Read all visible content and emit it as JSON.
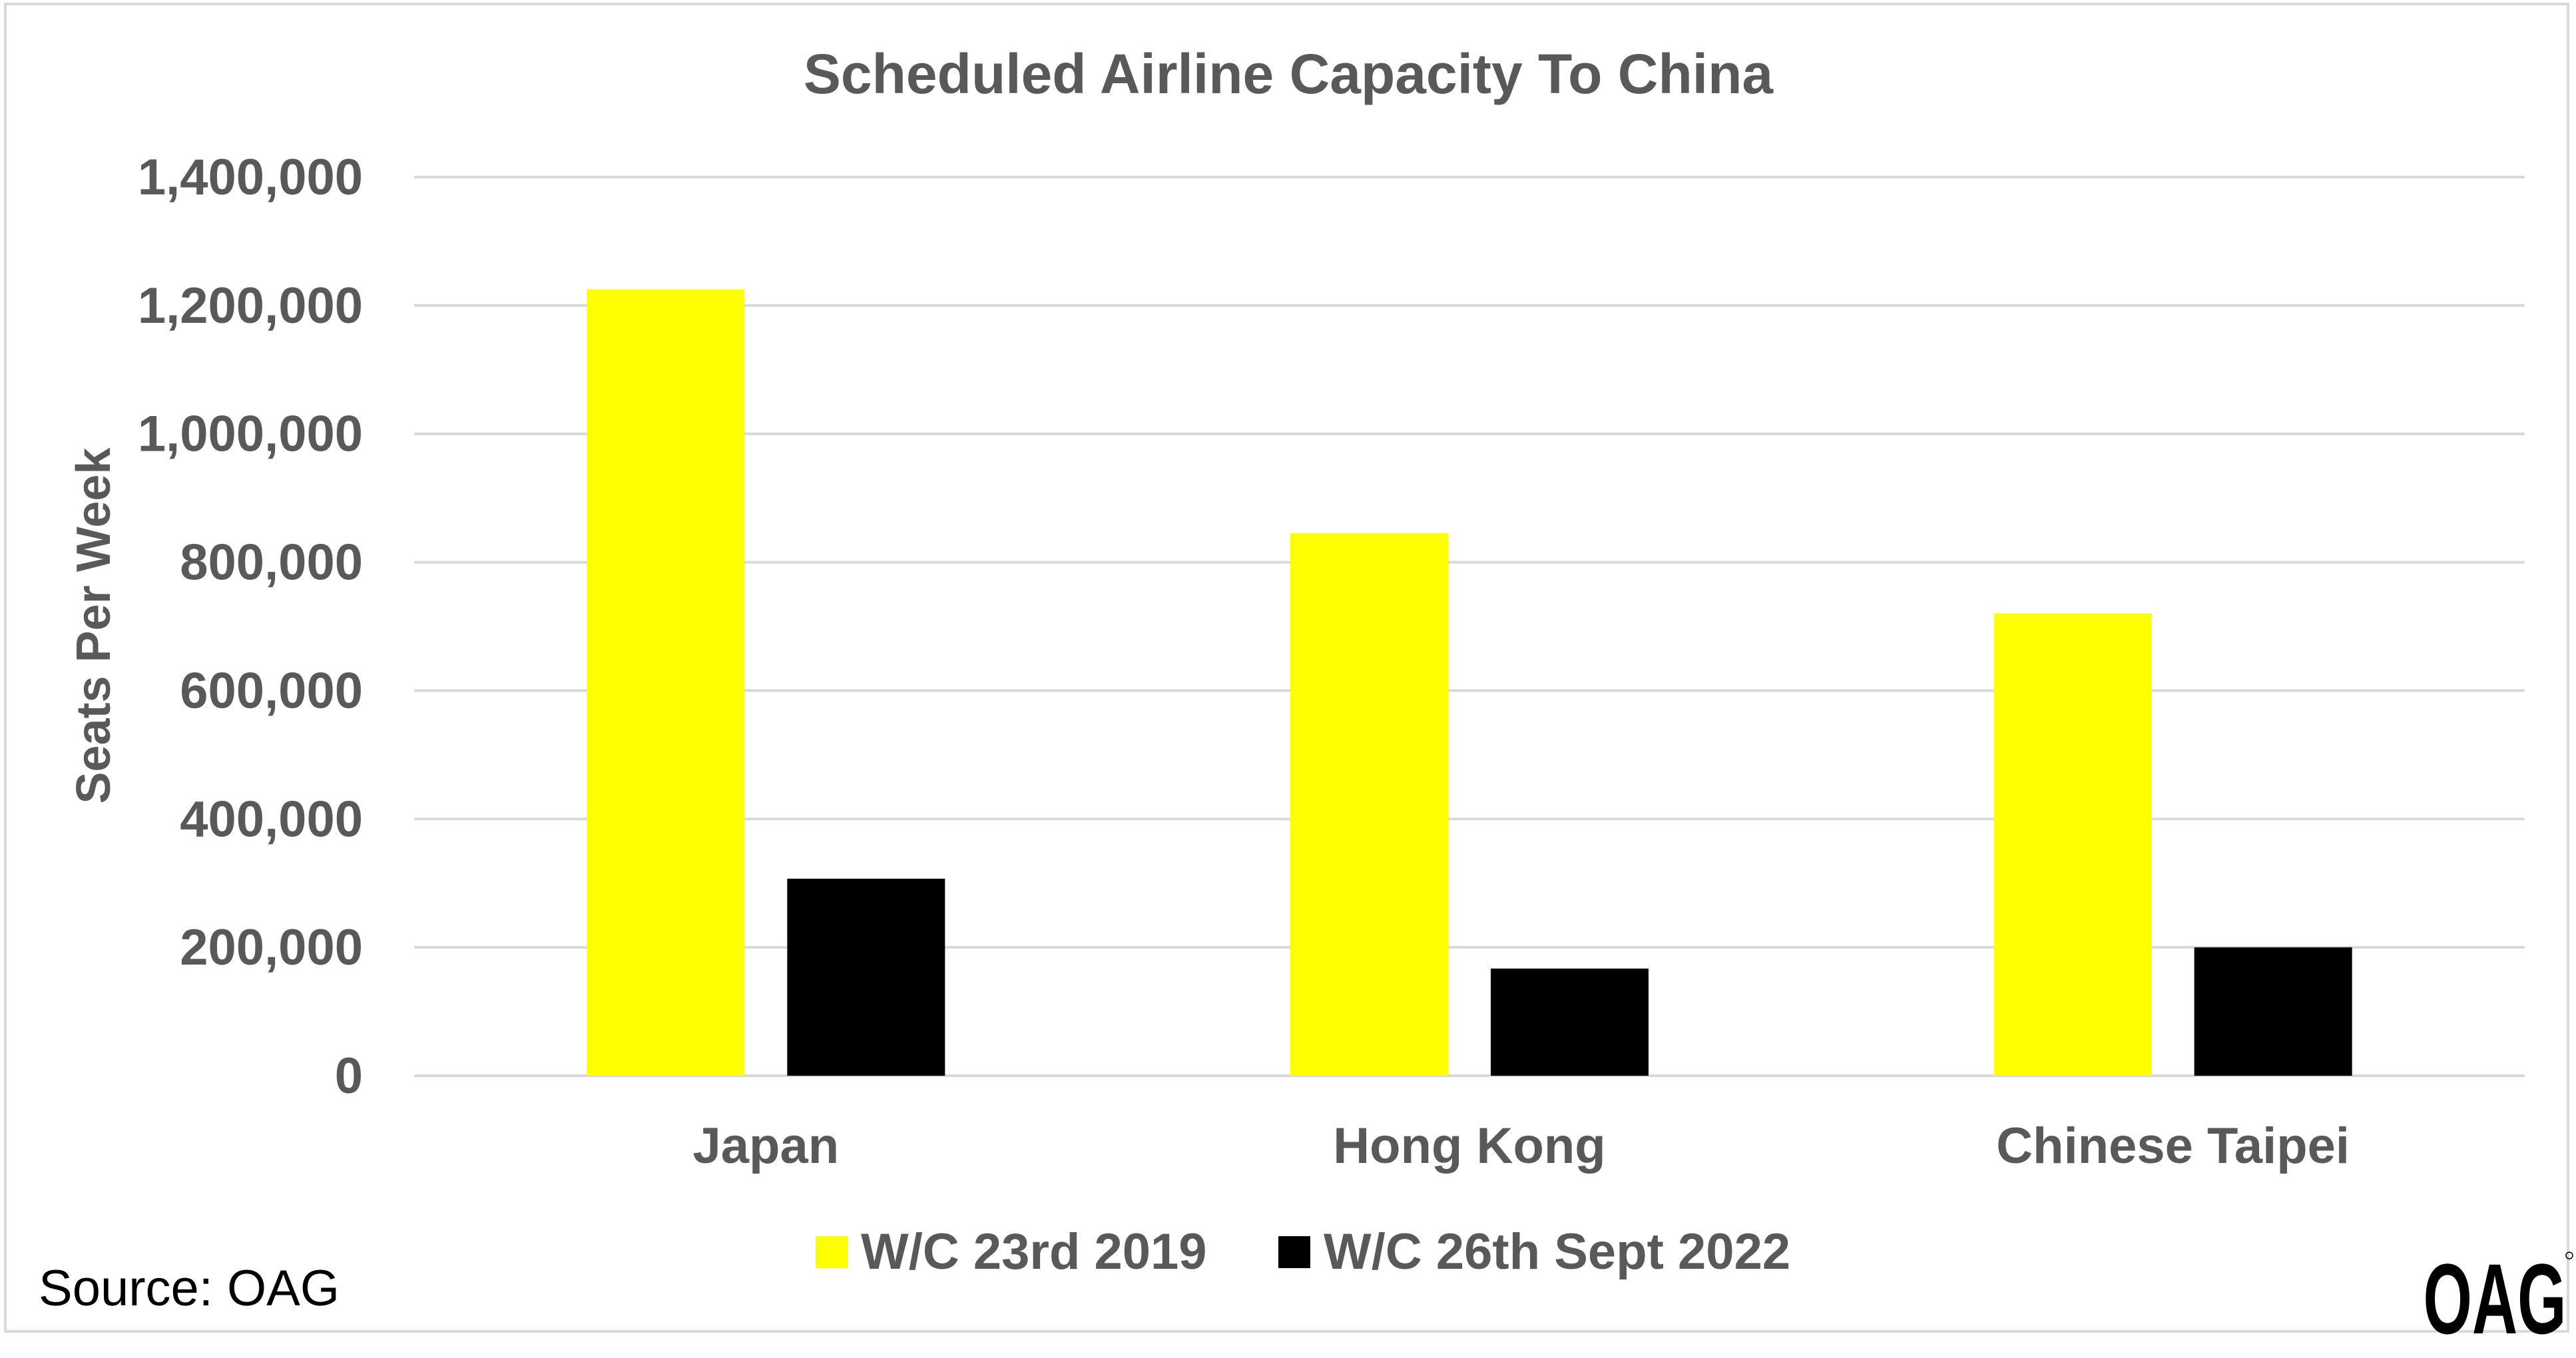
{
  "chart_data": {
    "type": "bar",
    "title": "Scheduled Airline Capacity To China",
    "xlabel": "",
    "ylabel": "Seats Per Week",
    "categories": [
      "Japan",
      "Hong Kong",
      "Chinese Taipei"
    ],
    "series": [
      {
        "name": "W/C 23rd 2019",
        "color": "#ffff00",
        "values": [
          1225000,
          845000,
          720000
        ]
      },
      {
        "name": "W/C 26th Sept 2022",
        "color": "#000000",
        "values": [
          307000,
          167000,
          200000
        ]
      }
    ],
    "ylim": [
      0,
      1400000
    ],
    "yticks": [
      0,
      200000,
      400000,
      600000,
      800000,
      1000000,
      1200000,
      1400000
    ],
    "ytick_labels": [
      "0",
      "200,000",
      "400,000",
      "600,000",
      "800,000",
      "1,000,000",
      "1,200,000",
      "1,400,000"
    ],
    "grid": true,
    "legend": "bottom"
  },
  "footer": {
    "source": "Source: OAG",
    "logo_text": "OAG"
  },
  "colors": {
    "text": "#595959",
    "grid": "#d9d9d9",
    "frame": "#d9d9d9"
  }
}
